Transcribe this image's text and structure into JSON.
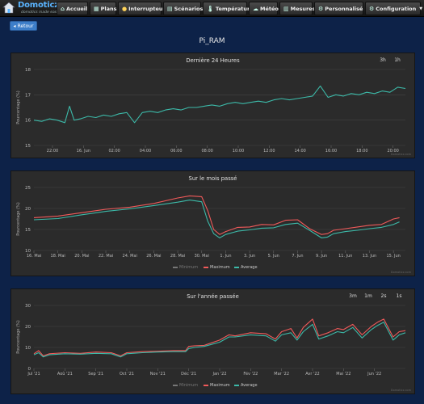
{
  "app": {
    "logo_text": "Domoticz",
    "logo_sub": "domotics made easy",
    "nav": [
      {
        "label": "Accueil",
        "icon": "home-icon"
      },
      {
        "label": "Plans",
        "icon": "grid-icon"
      },
      {
        "label": "Interrupteurs",
        "icon": "bulb-icon"
      },
      {
        "label": "Scénarios",
        "icon": "scenes-icon"
      },
      {
        "label": "Température",
        "icon": "thermometer-icon"
      },
      {
        "label": "Météo",
        "icon": "cloud-icon"
      },
      {
        "label": "Mesures",
        "icon": "meter-icon"
      },
      {
        "label": "Personnalisé",
        "icon": "gear-icon"
      },
      {
        "label": "Configuration",
        "icon": "wrench-icon"
      }
    ],
    "back_label": "Retour",
    "page_title": "Pi_RAM"
  },
  "colors": {
    "teal": "#3cb9a8",
    "red": "#f05a5a",
    "gray": "#888888",
    "bg": "#0d2248",
    "panel": "#2b2b2b"
  },
  "charts": [
    {
      "title": "Dernière 24 Heures",
      "zoom_buttons": [
        "3h",
        "1h"
      ],
      "ylabel": "Pourcentage (%)",
      "credit": "Domoticz.com"
    },
    {
      "title": "Sur le mois passé",
      "ylabel": "Pourcentage (%)",
      "legend": [
        "Minimum",
        "Maximum",
        "Average"
      ],
      "credit": "Domoticz.com"
    },
    {
      "title": "Sur l'année passée",
      "zoom_buttons": [
        "3m",
        "1m",
        "2s",
        "1s"
      ],
      "ylabel": "Pourcentage (%)",
      "legend": [
        "Minimum",
        "Maximum",
        "Average"
      ],
      "credit": "Domoticz.com"
    }
  ],
  "chart_data": [
    {
      "type": "line",
      "title": "Dernière 24 Heures",
      "ylabel": "Pourcentage (%)",
      "ylim": [
        15,
        18
      ],
      "yticks": [
        15,
        16,
        17,
        18
      ],
      "xticks": [
        "22:00",
        "16. Jun",
        "02:00",
        "04:00",
        "06:00",
        "08:00",
        "10:00",
        "12:00",
        "14:00",
        "16:00",
        "18:00",
        "20:00"
      ],
      "grid": true,
      "series": [
        {
          "color": "#3cb9a8",
          "x_hours": [
            0,
            0.5,
            1,
            1.5,
            2,
            2.3,
            2.6,
            3,
            3.5,
            4,
            4.5,
            5,
            5.5,
            6,
            6.5,
            7,
            7.5,
            8,
            8.5,
            9,
            9.5,
            10,
            10.5,
            11,
            11.5,
            12,
            12.5,
            13,
            13.5,
            14,
            14.5,
            15,
            15.5,
            16,
            16.5,
            17,
            17.5,
            18,
            18.5,
            19,
            19.5,
            20,
            20.5,
            21,
            21.5,
            22,
            22.5,
            23,
            23.5,
            24
          ],
          "values": [
            16.0,
            15.95,
            16.05,
            16.0,
            15.9,
            16.55,
            16.0,
            16.05,
            16.15,
            16.1,
            16.2,
            16.15,
            16.25,
            16.3,
            15.9,
            16.3,
            16.35,
            16.3,
            16.4,
            16.45,
            16.4,
            16.5,
            16.5,
            16.55,
            16.6,
            16.55,
            16.65,
            16.7,
            16.65,
            16.7,
            16.75,
            16.7,
            16.8,
            16.85,
            16.8,
            16.85,
            16.9,
            16.95,
            17.35,
            16.9,
            17.0,
            16.95,
            17.05,
            17.0,
            17.1,
            17.05,
            17.15,
            17.1,
            17.3,
            17.25
          ]
        }
      ]
    },
    {
      "type": "line",
      "title": "Sur le mois passé",
      "ylabel": "Pourcentage (%)",
      "ylim": [
        10,
        25
      ],
      "yticks": [
        10,
        15,
        20,
        25
      ],
      "xticks": [
        "16. Mai",
        "18. Mai",
        "20. Mai",
        "22. Mai",
        "24. Mai",
        "26. Mai",
        "28. Mai",
        "30. Mai",
        "1. Jun",
        "3. Jun",
        "5. Jun",
        "7. Jun",
        "9. Jun",
        "11. Jun",
        "13. Jun",
        "15. Jun"
      ],
      "grid": true,
      "legend": [
        "Minimum",
        "Maximum",
        "Average"
      ],
      "series": [
        {
          "name": "Maximum",
          "color": "#f05a5a",
          "x_days": [
            0,
            2,
            4,
            6,
            8,
            10,
            12,
            13,
            14,
            14.5,
            15,
            15.5,
            16,
            17,
            18,
            19,
            20,
            21,
            22,
            23,
            24,
            24.5,
            25,
            26,
            27,
            28,
            29,
            30,
            30.5
          ],
          "values": [
            17.8,
            18.2,
            19.0,
            19.8,
            20.3,
            21.2,
            22.5,
            23.0,
            22.8,
            19.5,
            15.0,
            13.8,
            14.5,
            15.5,
            15.6,
            16.2,
            16.1,
            17.2,
            17.3,
            15.2,
            13.8,
            14.0,
            14.8,
            15.2,
            15.6,
            16.0,
            16.2,
            17.5,
            17.8
          ]
        },
        {
          "name": "Average",
          "color": "#3cb9a8",
          "x_days": [
            0,
            2,
            4,
            6,
            8,
            10,
            12,
            13,
            14,
            14.5,
            15,
            15.5,
            16,
            17,
            18,
            19,
            20,
            21,
            22,
            23,
            24,
            24.5,
            25,
            26,
            27,
            28,
            29,
            30,
            30.5
          ],
          "values": [
            17.3,
            17.6,
            18.5,
            19.3,
            19.9,
            20.7,
            21.5,
            22.0,
            21.6,
            17.0,
            14.0,
            13.0,
            13.8,
            14.6,
            14.9,
            15.3,
            15.4,
            16.2,
            16.5,
            14.8,
            13.0,
            13.2,
            14.0,
            14.5,
            14.8,
            15.2,
            15.5,
            16.2,
            16.8
          ]
        }
      ]
    },
    {
      "type": "line",
      "title": "Sur l'année passée",
      "ylabel": "Pourcentage (%)",
      "ylim": [
        0,
        30
      ],
      "yticks": [
        0,
        10,
        20,
        30
      ],
      "xticks": [
        "Jul '21",
        "Aoû '21",
        "Sep '21",
        "Oct '21",
        "Nov '21",
        "Déc '21",
        "Jan '22",
        "Fév '22",
        "Mar '22",
        "Avr '22",
        "Mai '22",
        "Jun '22"
      ],
      "grid": true,
      "legend": [
        "Minimum",
        "Maximum",
        "Average"
      ],
      "series": [
        {
          "name": "Maximum",
          "color": "#f05a5a",
          "x_months": [
            0,
            0.15,
            0.3,
            0.5,
            1,
            1.5,
            2,
            2.5,
            2.8,
            3,
            3.5,
            4,
            4.5,
            4.9,
            5.0,
            5.2,
            5.5,
            6,
            6.3,
            6.5,
            7,
            7.5,
            7.8,
            8,
            8.3,
            8.5,
            8.7,
            9,
            9.2,
            9.5,
            9.8,
            10,
            10.3,
            10.6,
            10.9,
            11.1,
            11.3,
            11.6,
            11.8,
            12
          ],
          "values": [
            7,
            8.5,
            6,
            7,
            7.5,
            7.2,
            7.8,
            7.5,
            6.0,
            7.5,
            8,
            8.2,
            8.5,
            8.5,
            10.5,
            10.8,
            11,
            13.5,
            16,
            15.5,
            17,
            16.5,
            14,
            17.5,
            19,
            14.5,
            19.5,
            23.5,
            15.5,
            17,
            19,
            18.5,
            21,
            16,
            20,
            22,
            23.5,
            15,
            17.5,
            18
          ]
        },
        {
          "name": "Average",
          "color": "#3cb9a8",
          "x_months": [
            0,
            0.15,
            0.3,
            0.5,
            1,
            1.5,
            2,
            2.5,
            2.8,
            3,
            3.5,
            4,
            4.5,
            4.9,
            5.0,
            5.2,
            5.5,
            6,
            6.3,
            6.5,
            7,
            7.5,
            7.8,
            8,
            8.3,
            8.5,
            8.7,
            9,
            9.2,
            9.5,
            9.8,
            10,
            10.3,
            10.6,
            10.9,
            11.1,
            11.3,
            11.6,
            11.8,
            12
          ],
          "values": [
            6.5,
            7.5,
            5.5,
            6.5,
            7,
            6.8,
            7.2,
            7,
            5.5,
            7,
            7.5,
            7.8,
            8,
            8,
            9.5,
            10,
            10.5,
            12.5,
            15,
            15,
            16,
            15.5,
            13,
            16,
            17,
            13.5,
            17.5,
            21,
            14,
            15.5,
            17.5,
            17,
            19.5,
            14.5,
            18.5,
            20.5,
            22,
            13.5,
            16,
            17
          ]
        }
      ]
    }
  ]
}
